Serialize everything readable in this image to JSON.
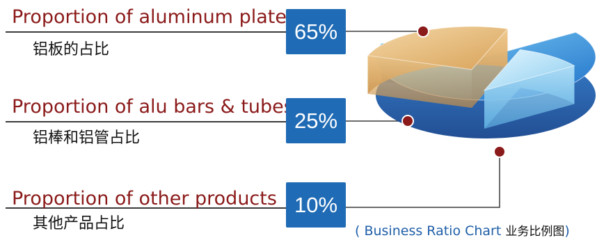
{
  "chart_data": {
    "type": "pie",
    "series": [
      {
        "label_en": "Proportion of aluminum plates",
        "label_cn": "铝板的占比",
        "value": 65,
        "display": "65%",
        "color": "#2f8fe0"
      },
      {
        "label_en": "Proportion of alu bars & tubes",
        "label_cn": "铝棒和铝管占比",
        "value": 25,
        "display": "25%",
        "color": "#e9b56a"
      },
      {
        "label_en": "Proportion of other products",
        "label_cn": "其他产品占比",
        "value": 10,
        "display": "10%",
        "color": "#a9dcf4"
      }
    ],
    "caption": {
      "open": "(",
      "en": " Business Ratio Chart ",
      "cn": "业务比例图",
      "close": ")"
    }
  },
  "colors": {
    "label_text": "#8b1a1a",
    "box_fill": "#1f6bb5",
    "marker": "#8b1a1a",
    "caption_text": "#1f5fa8"
  }
}
